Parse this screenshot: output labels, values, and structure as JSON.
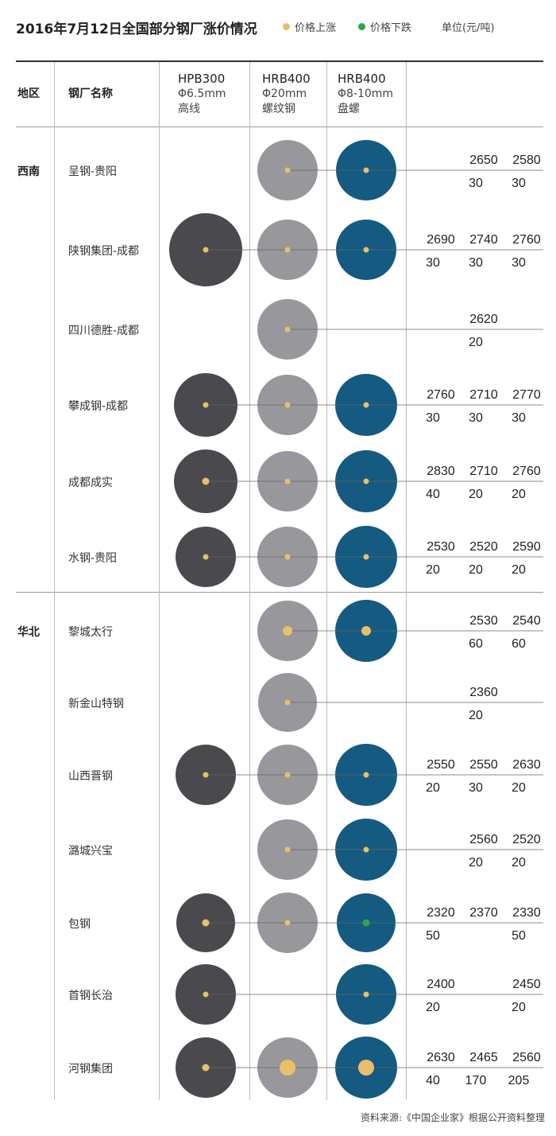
{
  "title": "2016年7月12日全国部分钢厂涨价情况",
  "legend": {
    "up": {
      "label": "价格上涨",
      "color": "#e8c06a"
    },
    "down": {
      "label": "价格下跌",
      "color": "#2aa84a"
    }
  },
  "unit": "单位(元/吨)",
  "header": {
    "region": "地区",
    "mill": "钢厂名称",
    "columns": [
      {
        "name": "HPB300",
        "spec": "Φ6.5mm",
        "kind": "高线",
        "color": "#4a4a4e"
      },
      {
        "name": "HRB400",
        "spec": "Φ20mm",
        "kind": "螺纹钢",
        "color": "#98989c"
      },
      {
        "name": "HRB400",
        "spec": "Φ8-10mm",
        "kind": "盘螺",
        "color": "#155a80"
      }
    ]
  },
  "chart_data": {
    "type": "table",
    "series_names": [
      "HPB300 Φ6.5mm 高线",
      "HRB400 Φ20mm 螺纹钢",
      "HRB400 Φ8-10mm 盘螺"
    ],
    "rows": [
      {
        "region": "西南",
        "mill": "呈钢-贵阳",
        "price": [
          null,
          2650,
          2580
        ],
        "change": [
          null,
          30,
          30
        ],
        "dir": [
          null,
          "up",
          "up"
        ]
      },
      {
        "region": "",
        "mill": "陕钢集团-成都",
        "price": [
          2690,
          2740,
          2760
        ],
        "change": [
          30,
          30,
          30
        ],
        "dir": [
          "up",
          "up",
          "up"
        ]
      },
      {
        "region": "",
        "mill": "四川德胜-成都",
        "price": [
          null,
          2620,
          null
        ],
        "change": [
          null,
          20,
          null
        ],
        "dir": [
          null,
          "up",
          null
        ]
      },
      {
        "region": "",
        "mill": "攀成钢-成都",
        "price": [
          2760,
          2710,
          2770
        ],
        "change": [
          30,
          30,
          30
        ],
        "dir": [
          "up",
          "up",
          "up"
        ]
      },
      {
        "region": "",
        "mill": "成都成实",
        "price": [
          2830,
          2710,
          2760
        ],
        "change": [
          40,
          20,
          20
        ],
        "dir": [
          "up",
          "up",
          "up"
        ]
      },
      {
        "region": "",
        "mill": "水钢-贵阳",
        "price": [
          2530,
          2520,
          2590
        ],
        "change": [
          20,
          20,
          20
        ],
        "dir": [
          "up",
          "up",
          "up"
        ]
      },
      {
        "region": "华北",
        "mill": "黎城太行",
        "price": [
          null,
          2530,
          2540
        ],
        "change": [
          null,
          60,
          60
        ],
        "dir": [
          null,
          "up",
          "up"
        ]
      },
      {
        "region": "",
        "mill": "新金山特钢",
        "price": [
          null,
          2360,
          null
        ],
        "change": [
          null,
          20,
          null
        ],
        "dir": [
          null,
          "up",
          null
        ]
      },
      {
        "region": "",
        "mill": "山西晋钢",
        "price": [
          2550,
          2550,
          2630
        ],
        "change": [
          20,
          30,
          20
        ],
        "dir": [
          "up",
          "up",
          "up"
        ]
      },
      {
        "region": "",
        "mill": "潞城兴宝",
        "price": [
          null,
          2560,
          2520
        ],
        "change": [
          null,
          20,
          20
        ],
        "dir": [
          null,
          "up",
          "up"
        ]
      },
      {
        "region": "",
        "mill": "包钢",
        "price": [
          2320,
          2370,
          2330
        ],
        "change": [
          50,
          null,
          50
        ],
        "dir": [
          "up",
          null,
          "down"
        ]
      },
      {
        "region": "",
        "mill": "首钢长治",
        "price": [
          2400,
          null,
          2450
        ],
        "change": [
          20,
          null,
          20
        ],
        "dir": [
          "up",
          null,
          "up"
        ]
      },
      {
        "region": "",
        "mill": "河钢集团",
        "price": [
          2630,
          2465,
          2560
        ],
        "change": [
          40,
          170,
          205
        ],
        "dir": [
          "up",
          "up",
          "up"
        ]
      }
    ]
  },
  "source": "资料来源:《中国企业家》根据公开资料整理"
}
